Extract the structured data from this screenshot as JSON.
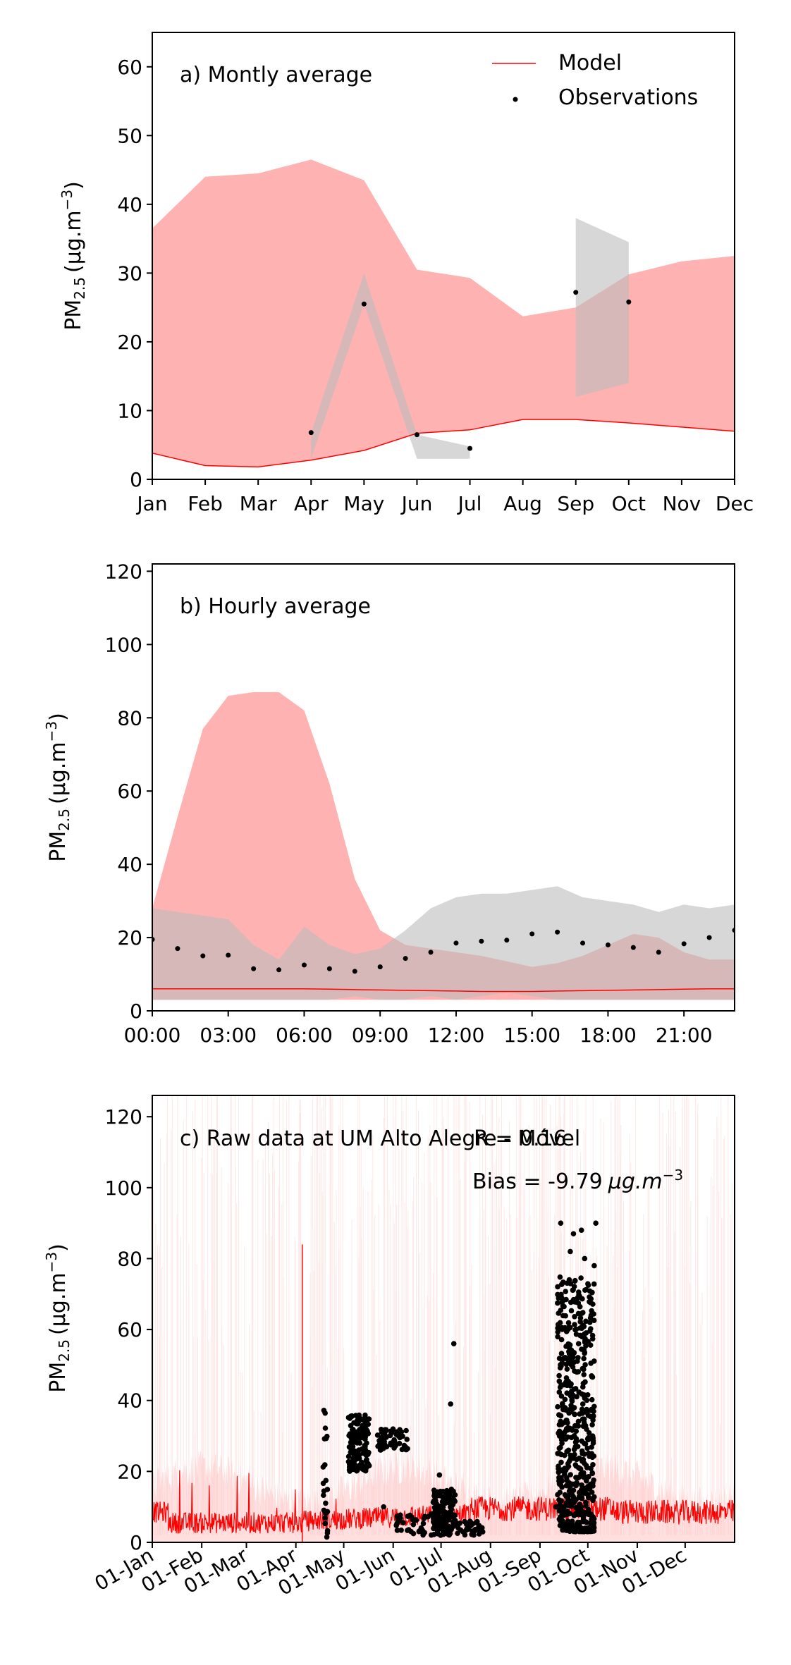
{
  "figure": {
    "ylabel_base": "PM",
    "ylabel_sub": "2.5",
    "ylabel_units": "(μg.m",
    "ylabel_exp": "−3",
    "ylabel_close": ")"
  },
  "colors": {
    "model": "#ff0000",
    "model_band": "#ffb2b2",
    "obs": "#000000",
    "obs_band": "#bdbdbd"
  },
  "chart_data": [
    {
      "id": "monthly",
      "type": "line",
      "title": "a) Montly average",
      "ylim": [
        0,
        65
      ],
      "yticks": [
        0,
        10,
        20,
        30,
        40,
        50,
        60
      ],
      "x": [
        0,
        1,
        2,
        3,
        4,
        5,
        6,
        7,
        8,
        9,
        10,
        11
      ],
      "xticks": [
        "Jan",
        "Feb",
        "Mar",
        "Apr",
        "May",
        "Jun",
        "Jul",
        "Aug",
        "Sep",
        "Oct",
        "Nov",
        "Dec"
      ],
      "legend": {
        "placement": "top-right",
        "model": "Model",
        "observations": "Observations"
      },
      "model_line": [
        3.8,
        2.0,
        1.8,
        2.8,
        4.2,
        6.7,
        7.2,
        8.7,
        8.7,
        8.2,
        7.6,
        7.0
      ],
      "model_band_upper": [
        36.5,
        44.0,
        44.5,
        46.5,
        43.5,
        30.5,
        29.3,
        23.7,
        25.0,
        29.8,
        31.7,
        32.5
      ],
      "model_band_lower": [
        3.8,
        2.0,
        1.8,
        2.8,
        4.2,
        6.7,
        7.2,
        8.7,
        8.7,
        8.2,
        7.6,
        7.0
      ],
      "obs_points": [
        [
          3,
          6.8
        ],
        [
          4,
          25.5
        ],
        [
          5,
          6.5
        ],
        [
          6,
          4.5
        ],
        [
          8,
          27.2
        ],
        [
          9,
          25.8
        ]
      ],
      "obs_bands": [
        {
          "x": [
            3,
            4,
            5,
            6
          ],
          "upper": [
            6.8,
            30.0,
            6.5,
            4.8
          ],
          "lower": [
            3.0,
            25.5,
            3.0,
            3.0
          ]
        },
        {
          "x": [
            8,
            9
          ],
          "upper": [
            38.0,
            34.5
          ],
          "lower": [
            12.0,
            14.0
          ]
        }
      ]
    },
    {
      "id": "hourly",
      "type": "line",
      "title": "b) Hourly average",
      "ylim": [
        0,
        122
      ],
      "yticks": [
        0,
        20,
        40,
        60,
        80,
        100,
        120
      ],
      "xlim": [
        0,
        23
      ],
      "xtick_values": [
        0,
        3,
        6,
        9,
        12,
        15,
        18,
        21
      ],
      "xticks": [
        "00:00",
        "03:00",
        "06:00",
        "09:00",
        "12:00",
        "15:00",
        "18:00",
        "21:00"
      ],
      "hours": [
        0,
        1,
        2,
        3,
        4,
        5,
        6,
        7,
        8,
        9,
        10,
        11,
        12,
        13,
        14,
        15,
        16,
        17,
        18,
        19,
        20,
        21,
        22,
        23
      ],
      "model_line": [
        6.0,
        6.0,
        6.0,
        6.0,
        6.0,
        6.0,
        6.0,
        5.9,
        5.8,
        5.7,
        5.6,
        5.5,
        5.4,
        5.3,
        5.3,
        5.3,
        5.4,
        5.5,
        5.6,
        5.7,
        5.8,
        5.9,
        6.0,
        6.0
      ],
      "model_band_upper": [
        28,
        53,
        77,
        86,
        87,
        87,
        82,
        62,
        36,
        22,
        18,
        17,
        16,
        15,
        13.5,
        12,
        13,
        15,
        18,
        21,
        20,
        16,
        14,
        14
      ],
      "model_band_lower": [
        3,
        3,
        3,
        3,
        3,
        3,
        3,
        3,
        3,
        3,
        3,
        3,
        3,
        3,
        3,
        3,
        3,
        3,
        3,
        3,
        3,
        3,
        3,
        3
      ],
      "obs_points": [
        19.5,
        17,
        15,
        15.2,
        11.5,
        11.2,
        12.5,
        11.5,
        10.8,
        12,
        14.3,
        16,
        18.5,
        19,
        19.3,
        21,
        21.5,
        18.5,
        18,
        17.3,
        16,
        18.3,
        20,
        22
      ],
      "obs_band_upper": [
        28,
        27,
        26,
        25,
        18,
        14,
        23,
        18,
        15.5,
        17,
        22,
        28,
        31,
        32,
        32,
        33,
        34,
        31,
        30,
        29,
        27,
        29,
        28,
        29
      ],
      "obs_band_lower": [
        3,
        3,
        3,
        3,
        3,
        3,
        3,
        3,
        4,
        3,
        3,
        4,
        3,
        4,
        5,
        4,
        3,
        3,
        3,
        3,
        3,
        3,
        3,
        3
      ]
    },
    {
      "id": "raw",
      "type": "scatter",
      "title": "c) Raw data at UM Alto Alegre - Móvel",
      "r_text": "R = 0.16",
      "bias_label": "Bias = -9.79",
      "bias_units": "μg.m",
      "bias_exp": "−3",
      "ylim": [
        0,
        126
      ],
      "yticks": [
        0,
        20,
        40,
        60,
        80,
        100,
        120
      ],
      "xlim": [
        0,
        365
      ],
      "xtick_values": [
        0,
        31,
        59,
        90,
        120,
        151,
        181,
        212,
        243,
        273,
        304,
        334
      ],
      "xticks": [
        "01-Jan",
        "01-Feb",
        "01-Mar",
        "01-Apr",
        "01-May",
        "01-Jun",
        "01-Jul",
        "01-Aug",
        "01-Sep",
        "01-Oct",
        "01-Nov",
        "01-Dec"
      ],
      "model_spike": {
        "day": 94,
        "value": 84
      },
      "obs_clusters": [
        {
          "start": 107,
          "end": 110,
          "ymin": 1,
          "ymax": 39,
          "n": 22
        },
        {
          "start": 123,
          "end": 136,
          "ymin": 20,
          "ymax": 36,
          "n": 140
        },
        {
          "start": 141,
          "end": 147,
          "ymin": 26,
          "ymax": 32,
          "n": 30
        },
        {
          "start": 149,
          "end": 160,
          "ymin": 26,
          "ymax": 32,
          "n": 36
        },
        {
          "start": 150,
          "end": 178,
          "ymin": 2,
          "ymax": 8,
          "n": 40
        },
        {
          "start": 176,
          "end": 190,
          "ymin": 2,
          "ymax": 15,
          "n": 130
        },
        {
          "start": 190,
          "end": 208,
          "ymin": 2,
          "ymax": 6,
          "n": 40
        },
        {
          "start": 254,
          "end": 277,
          "ymin": 3,
          "ymax": 75,
          "n": 560
        }
      ],
      "obs_extra_points": [
        [
          180,
          19
        ],
        [
          183,
          12
        ],
        [
          187,
          39
        ],
        [
          189,
          56
        ],
        [
          256,
          90
        ],
        [
          278,
          90
        ],
        [
          277,
          78
        ],
        [
          264,
          87
        ],
        [
          271,
          80
        ],
        [
          269,
          88
        ],
        [
          262,
          82
        ],
        [
          253,
          10
        ],
        [
          145,
          10
        ]
      ]
    }
  ]
}
